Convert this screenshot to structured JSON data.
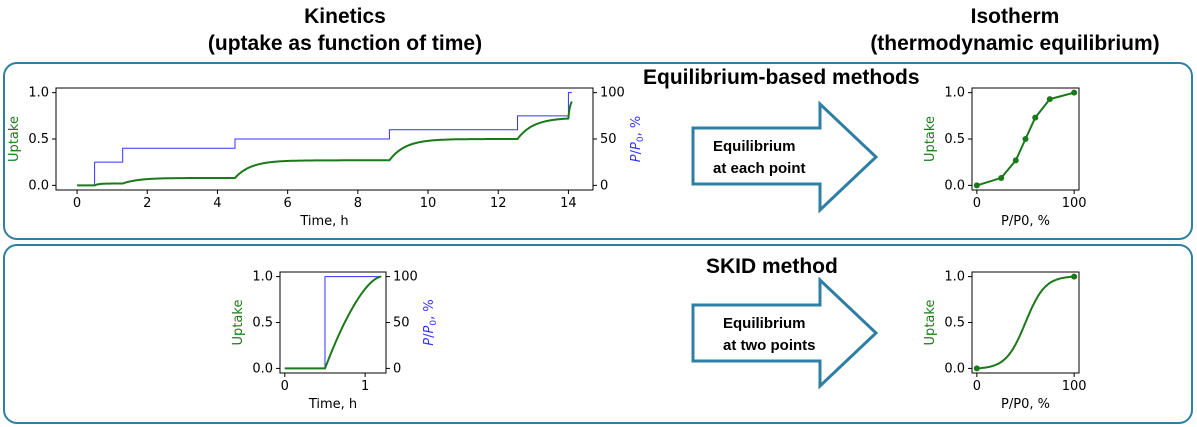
{
  "headers": {
    "kinetics_line1": "Kinetics",
    "kinetics_line2": "(uptake as function of time)",
    "isotherm_line1": "Isotherm",
    "isotherm_line2": "(thermodynamic equilibrium)"
  },
  "panels": {
    "top_title": "Equilibrium-based methods",
    "bottom_title": "SKID method",
    "top_arrow_line1": "Equilibrium",
    "top_arrow_line2": "at each point",
    "bottom_arrow_line1": "Equilibrium",
    "bottom_arrow_line2": "at two points"
  },
  "colors": {
    "uptake": "#1a7a1a",
    "pressure": "#3333ff",
    "frame": "#2e7fa3"
  },
  "chart_data": [
    {
      "id": "kinetics_top",
      "type": "line",
      "xlabel": "Time, h",
      "ylabel": "Uptake",
      "ylabel_right": "P/P0, %",
      "xlim": [
        -0.6,
        14.7
      ],
      "ylim": [
        -0.05,
        1.05
      ],
      "ylim_right": [
        -5,
        105
      ],
      "xticks": [
        0,
        2,
        4,
        6,
        8,
        10,
        12,
        14
      ],
      "yticks": [
        0.0,
        0.5,
        1.0
      ],
      "yticks_right": [
        0,
        50,
        100
      ],
      "step_times": [
        0.5,
        1.3,
        4.5,
        8.9,
        12.55,
        14.0
      ],
      "series": [
        {
          "name": "Uptake",
          "levels": [
            0.0,
            0.02,
            0.08,
            0.27,
            0.5,
            0.73,
            0.93,
            1.0
          ],
          "end_time": 14.1
        },
        {
          "name": "P/P0",
          "levels": [
            0,
            25,
            40,
            50,
            60,
            75,
            100
          ],
          "end_time": 14.1
        }
      ]
    },
    {
      "id": "kinetics_bottom",
      "type": "line",
      "xlabel": "Time, h",
      "ylabel": "Uptake",
      "ylabel_right": "P/P0, %",
      "xlim": [
        -0.06,
        1.26
      ],
      "ylim": [
        -0.05,
        1.05
      ],
      "ylim_right": [
        -5,
        105
      ],
      "xticks": [
        0,
        1
      ],
      "yticks": [
        0.0,
        0.5,
        1.0
      ],
      "yticks_right": [
        0,
        50,
        100
      ],
      "step_time": 0.5,
      "end_time": 1.2,
      "series": [
        {
          "name": "Uptake",
          "start": 0.0,
          "end": 1.0
        },
        {
          "name": "P/P0",
          "start": 0,
          "end": 100
        }
      ]
    },
    {
      "id": "isotherm_top",
      "type": "line",
      "xlabel": "P/P0, %",
      "ylabel": "Uptake",
      "xlim": [
        -5,
        105
      ],
      "ylim": [
        -0.05,
        1.05
      ],
      "xticks": [
        0,
        100
      ],
      "yticks": [
        0.0,
        0.5,
        1.0
      ],
      "points": [
        [
          0,
          0.0
        ],
        [
          25,
          0.08
        ],
        [
          40,
          0.27
        ],
        [
          50,
          0.5
        ],
        [
          60,
          0.73
        ],
        [
          75,
          0.93
        ],
        [
          100,
          1.0
        ]
      ]
    },
    {
      "id": "isotherm_bottom",
      "type": "line",
      "xlabel": "P/P0, %",
      "ylabel": "Uptake",
      "xlim": [
        -5,
        105
      ],
      "ylim": [
        -0.05,
        1.05
      ],
      "xticks": [
        0,
        100
      ],
      "yticks": [
        0.0,
        0.5,
        1.0
      ],
      "endpoints": [
        [
          0,
          0.0
        ],
        [
          100,
          1.0
        ]
      ],
      "curve": "sigmoid"
    }
  ]
}
